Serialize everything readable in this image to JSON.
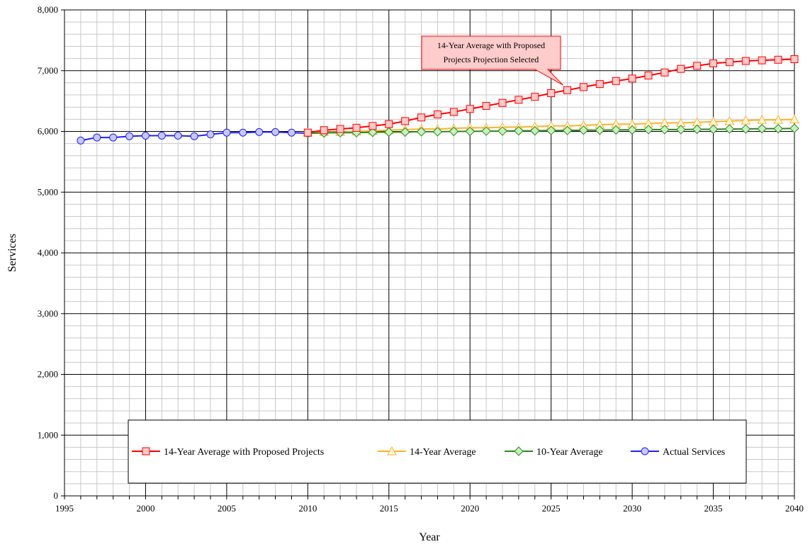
{
  "chart_data": {
    "type": "line",
    "xlabel": "Year",
    "ylabel": "Services",
    "xlim": [
      1995,
      2040
    ],
    "ylim": [
      0,
      8000
    ],
    "x_ticks": [
      1995,
      2000,
      2005,
      2010,
      2015,
      2020,
      2025,
      2030,
      2035,
      2040
    ],
    "y_ticks": [
      0,
      1000,
      2000,
      3000,
      4000,
      5000,
      6000,
      7000,
      8000
    ],
    "x_tick_labels": [
      "1995",
      "2000",
      "2005",
      "2010",
      "2015",
      "2020",
      "2025",
      "2030",
      "2035",
      "2040"
    ],
    "y_tick_labels": [
      "0",
      "1,000",
      "2,000",
      "3,000",
      "4,000",
      "5,000",
      "6,000",
      "7,000",
      "8,000"
    ],
    "grid": true,
    "legend_position": "bottom",
    "annotation": {
      "line1": "14-Year Average with Proposed",
      "line2": "Projects Projection Selected",
      "points_to": [
        2026,
        6670
      ]
    },
    "series": [
      {
        "name": "14-Year Average with Proposed Projects",
        "color": "#ff0000",
        "marker": "square",
        "marker_fill": "#ffc8c8",
        "x": [
          2010,
          2011,
          2012,
          2013,
          2014,
          2015,
          2016,
          2017,
          2018,
          2019,
          2020,
          2021,
          2022,
          2023,
          2024,
          2025,
          2026,
          2027,
          2028,
          2029,
          2030,
          2031,
          2032,
          2033,
          2034,
          2035,
          2036,
          2037,
          2038,
          2039,
          2040
        ],
        "values": [
          5980,
          6020,
          6040,
          6060,
          6090,
          6120,
          6170,
          6230,
          6280,
          6320,
          6370,
          6420,
          6470,
          6520,
          6570,
          6630,
          6680,
          6730,
          6780,
          6830,
          6870,
          6920,
          6970,
          7030,
          7080,
          7120,
          7140,
          7160,
          7170,
          7180,
          7190
        ]
      },
      {
        "name": "14-Year Average",
        "color": "#ffb030",
        "marker": "triangle",
        "marker_fill": "#fff8d8",
        "x": [
          2010,
          2011,
          2012,
          2013,
          2014,
          2015,
          2016,
          2017,
          2018,
          2019,
          2020,
          2021,
          2022,
          2023,
          2024,
          2025,
          2026,
          2027,
          2028,
          2029,
          2030,
          2031,
          2032,
          2033,
          2034,
          2035,
          2036,
          2037,
          2038,
          2039,
          2040
        ],
        "values": [
          5980,
          5990,
          5990,
          6000,
          6010,
          6020,
          6030,
          6040,
          6040,
          6050,
          6060,
          6060,
          6070,
          6070,
          6080,
          6090,
          6090,
          6100,
          6110,
          6120,
          6120,
          6130,
          6140,
          6140,
          6150,
          6160,
          6170,
          6180,
          6190,
          6190,
          6200
        ]
      },
      {
        "name": "10-Year Average",
        "color": "#2a8a1c",
        "marker": "diamond",
        "marker_fill": "#c8f0c0",
        "x": [
          2010,
          2011,
          2012,
          2013,
          2014,
          2015,
          2016,
          2017,
          2018,
          2019,
          2020,
          2021,
          2022,
          2023,
          2024,
          2025,
          2026,
          2027,
          2028,
          2029,
          2030,
          2031,
          2032,
          2033,
          2034,
          2035,
          2036,
          2037,
          2038,
          2039,
          2040
        ],
        "values": [
          5970,
          5975,
          5980,
          5980,
          5985,
          5990,
          5990,
          5995,
          5995,
          6000,
          6000,
          6005,
          6005,
          6010,
          6010,
          6015,
          6015,
          6020,
          6020,
          6025,
          6025,
          6030,
          6030,
          6030,
          6035,
          6035,
          6040,
          6040,
          6045,
          6045,
          6050
        ]
      },
      {
        "name": "Actual Services",
        "color": "#2020ff",
        "marker": "circle",
        "marker_fill": "#c8c8ff",
        "x": [
          1996,
          1997,
          1998,
          1999,
          2000,
          2001,
          2002,
          2003,
          2004,
          2005,
          2006,
          2007,
          2008,
          2009,
          2010
        ],
        "values": [
          5850,
          5900,
          5900,
          5920,
          5930,
          5930,
          5930,
          5920,
          5950,
          5980,
          5980,
          5990,
          5990,
          5980,
          5970
        ]
      }
    ]
  }
}
